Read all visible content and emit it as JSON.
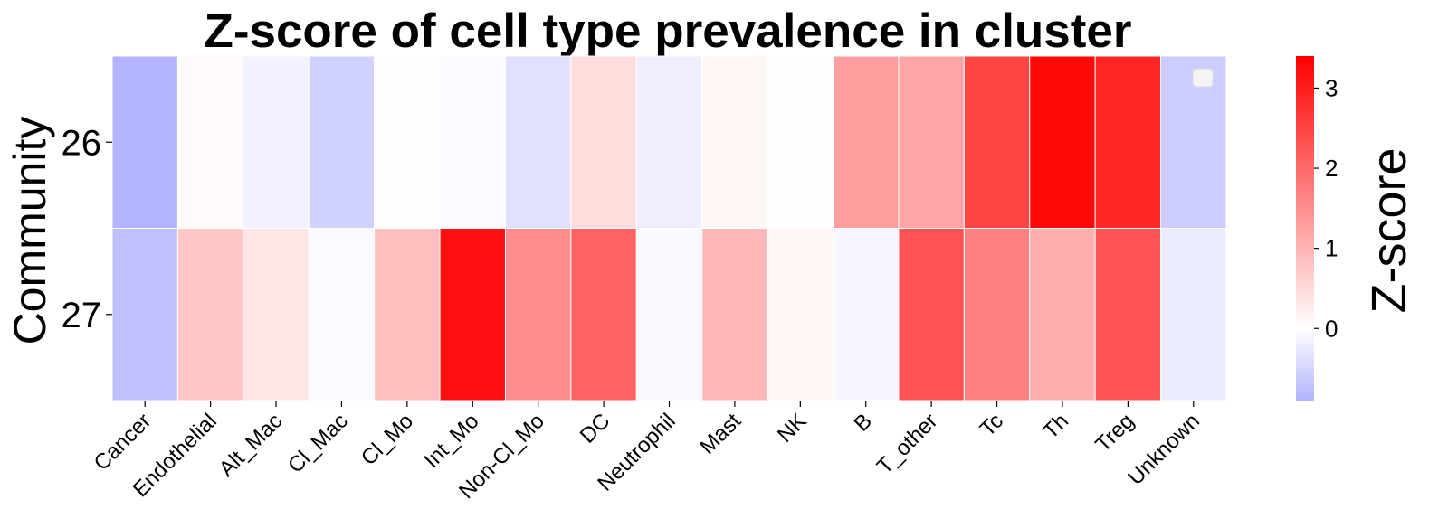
{
  "chart_data": {
    "type": "heatmap",
    "title": "Z-score of cell type prevalence in cluster",
    "ylabel": "Community",
    "xlabel": "",
    "columns": [
      "Cancer",
      "Endothelial",
      "Alt_Mac",
      "Cl_Mac",
      "Cl_Mo",
      "Int_Mo",
      "Non-Cl_Mo",
      "DC",
      "Neutrophil",
      "Mast",
      "NK",
      "B",
      "T_other",
      "Tc",
      "Th",
      "Treg",
      "Unknown"
    ],
    "rows": [
      "26",
      "27"
    ],
    "values": [
      [
        -0.9,
        0.05,
        -0.15,
        -0.55,
        0.02,
        -0.06,
        -0.35,
        0.45,
        -0.2,
        0.12,
        -0.02,
        1.3,
        1.2,
        2.5,
        3.3,
        2.9,
        -0.6
      ],
      [
        -0.75,
        0.75,
        0.35,
        -0.05,
        0.85,
        3.2,
        1.5,
        2.1,
        -0.08,
        0.95,
        0.12,
        -0.1,
        2.3,
        1.7,
        1.1,
        2.3,
        -0.22
      ]
    ],
    "colorbar": {
      "label": "Z-score",
      "min": -0.9,
      "max": 3.4,
      "ticks": [
        0,
        1,
        2,
        3
      ],
      "colormap": "bwr",
      "low_color": "#b3b3ff",
      "mid_color": "#ffffff",
      "high_color": "#ff0000"
    },
    "legend": "upper-right, empty"
  }
}
